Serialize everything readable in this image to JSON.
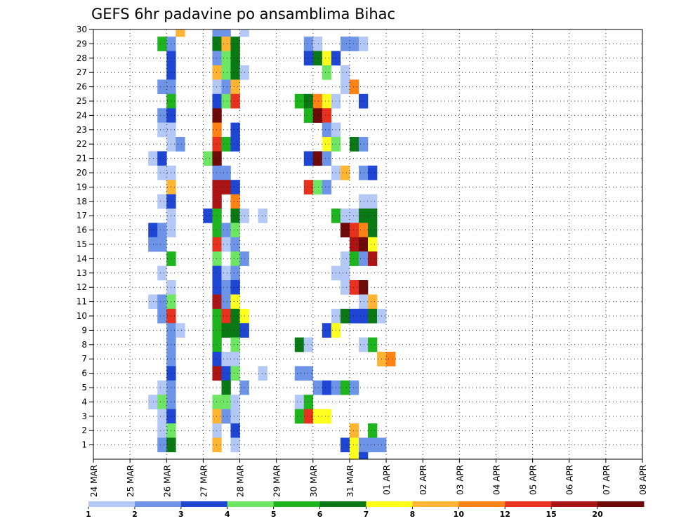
{
  "chart_data": {
    "type": "heatmap",
    "title": "GEFS 6hr padavine po ansamblima Bihac",
    "y_ticks": [
      "1",
      "2",
      "3",
      "4",
      "5",
      "6",
      "7",
      "8",
      "9",
      "10",
      "11",
      "12",
      "13",
      "14",
      "15",
      "16",
      "17",
      "18",
      "19",
      "20",
      "21",
      "22",
      "23",
      "24",
      "25",
      "26",
      "27",
      "28",
      "29",
      "30"
    ],
    "x_ticks": [
      "24 MAR",
      "25 MAR",
      "26 MAR",
      "27 MAR",
      "28 MAR",
      "29 MAR",
      "30 MAR",
      "31 MAR",
      "01 APR",
      "02 APR",
      "03 APR",
      "04 APR",
      "05 APR",
      "06 APR",
      "07 APR",
      "08 APR"
    ],
    "x_range": [
      "24 MAR 00z",
      "08 APR 00z"
    ],
    "y_range": [
      0,
      30
    ],
    "time_step_hours": 6,
    "grid": "dotted",
    "colorbar": {
      "labels": [
        "1",
        "2",
        "3",
        "4",
        "5",
        "6",
        "7",
        "8",
        "10",
        "12",
        "15",
        "20"
      ],
      "colors": [
        "#b4c8f5",
        "#6e94e8",
        "#1e46d2",
        "#6ee664",
        "#1eb41e",
        "#0a7814",
        "#ffff1e",
        "#ffb432",
        "#ff8214",
        "#e6321e",
        "#aa1414",
        "#6e0a0a"
      ]
    },
    "levels": [
      0,
      1,
      2,
      3,
      4,
      5,
      6,
      7,
      8,
      10,
      12,
      15,
      20
    ],
    "cells_format": "[member, time_step_from_24MAR_00z, color_class_index_0_to_11]",
    "cells": [
      [
        30,
        9,
        7
      ],
      [
        29,
        7,
        4
      ],
      [
        29,
        8,
        1
      ],
      [
        28,
        8,
        2
      ],
      [
        27,
        8,
        2
      ],
      [
        26,
        7,
        1
      ],
      [
        26,
        8,
        1
      ],
      [
        25,
        8,
        4
      ],
      [
        24,
        7,
        1
      ],
      [
        24,
        8,
        2
      ],
      [
        23,
        7,
        0
      ],
      [
        23,
        8,
        0
      ],
      [
        22,
        8,
        0
      ],
      [
        22,
        9,
        1
      ],
      [
        21,
        6,
        0
      ],
      [
        21,
        7,
        2
      ],
      [
        20,
        7,
        0
      ],
      [
        20,
        8,
        0
      ],
      [
        19,
        8,
        7
      ],
      [
        18,
        7,
        0
      ],
      [
        18,
        8,
        2
      ],
      [
        17,
        8,
        0
      ],
      [
        16,
        6,
        2
      ],
      [
        16,
        7,
        1
      ],
      [
        16,
        8,
        0
      ],
      [
        15,
        6,
        1
      ],
      [
        15,
        7,
        1
      ],
      [
        14,
        8,
        4
      ],
      [
        13,
        7,
        0
      ],
      [
        12,
        8,
        0
      ],
      [
        11,
        6,
        0
      ],
      [
        11,
        7,
        1
      ],
      [
        11,
        8,
        3
      ],
      [
        10,
        7,
        1
      ],
      [
        10,
        8,
        9
      ],
      [
        9,
        8,
        1
      ],
      [
        9,
        9,
        0
      ],
      [
        8,
        8,
        1
      ],
      [
        7,
        8,
        1
      ],
      [
        6,
        8,
        2
      ],
      [
        5,
        7,
        0
      ],
      [
        5,
        8,
        1
      ],
      [
        4,
        6,
        0
      ],
      [
        4,
        7,
        3
      ],
      [
        4,
        8,
        1
      ],
      [
        3,
        7,
        0
      ],
      [
        3,
        8,
        2
      ],
      [
        2,
        7,
        0
      ],
      [
        2,
        8,
        3
      ],
      [
        1,
        7,
        1
      ],
      [
        1,
        8,
        5
      ],
      [
        30,
        13,
        1
      ],
      [
        30,
        14,
        1
      ],
      [
        30,
        16,
        0
      ],
      [
        29,
        13,
        5
      ],
      [
        29,
        14,
        7
      ],
      [
        29,
        15,
        5
      ],
      [
        28,
        13,
        1
      ],
      [
        28,
        14,
        3
      ],
      [
        28,
        15,
        5
      ],
      [
        27,
        13,
        7
      ],
      [
        27,
        14,
        3
      ],
      [
        27,
        15,
        5
      ],
      [
        27,
        16,
        0
      ],
      [
        26,
        13,
        0
      ],
      [
        26,
        14,
        1
      ],
      [
        26,
        15,
        7
      ],
      [
        25,
        13,
        2
      ],
      [
        25,
        14,
        3
      ],
      [
        25,
        15,
        9
      ],
      [
        24,
        13,
        11
      ],
      [
        23,
        13,
        8
      ],
      [
        23,
        15,
        2
      ],
      [
        22,
        13,
        9
      ],
      [
        22,
        14,
        4
      ],
      [
        22,
        15,
        2
      ],
      [
        21,
        12,
        3
      ],
      [
        21,
        13,
        11
      ],
      [
        20,
        13,
        1
      ],
      [
        20,
        14,
        1
      ],
      [
        19,
        13,
        10
      ],
      [
        19,
        14,
        10
      ],
      [
        19,
        15,
        2
      ],
      [
        18,
        13,
        10
      ],
      [
        18,
        15,
        8
      ],
      [
        17,
        12,
        2
      ],
      [
        17,
        13,
        4
      ],
      [
        17,
        15,
        5
      ],
      [
        17,
        16,
        0
      ],
      [
        17,
        18,
        0
      ],
      [
        16,
        13,
        4
      ],
      [
        16,
        14,
        1
      ],
      [
        16,
        15,
        3
      ],
      [
        15,
        13,
        9
      ],
      [
        15,
        14,
        0
      ],
      [
        15,
        15,
        1
      ],
      [
        14,
        13,
        3
      ],
      [
        14,
        15,
        3
      ],
      [
        14,
        16,
        1
      ],
      [
        13,
        13,
        2
      ],
      [
        13,
        14,
        0
      ],
      [
        13,
        15,
        1
      ],
      [
        12,
        13,
        2
      ],
      [
        12,
        14,
        1
      ],
      [
        12,
        15,
        2
      ],
      [
        11,
        13,
        10
      ],
      [
        11,
        14,
        1
      ],
      [
        11,
        15,
        6
      ],
      [
        10,
        13,
        4
      ],
      [
        10,
        14,
        9
      ],
      [
        10,
        15,
        5
      ],
      [
        10,
        16,
        6
      ],
      [
        9,
        13,
        4
      ],
      [
        9,
        14,
        5
      ],
      [
        9,
        15,
        5
      ],
      [
        9,
        16,
        2
      ],
      [
        8,
        13,
        4
      ],
      [
        8,
        15,
        3
      ],
      [
        7,
        13,
        2
      ],
      [
        7,
        14,
        0
      ],
      [
        7,
        15,
        0
      ],
      [
        6,
        13,
        10
      ],
      [
        6,
        14,
        2
      ],
      [
        6,
        15,
        3
      ],
      [
        6,
        18,
        0
      ],
      [
        5,
        14,
        5
      ],
      [
        5,
        16,
        1
      ],
      [
        4,
        13,
        3
      ],
      [
        4,
        14,
        3
      ],
      [
        4,
        15,
        0
      ],
      [
        3,
        13,
        7
      ],
      [
        3,
        14,
        1
      ],
      [
        3,
        15,
        0
      ],
      [
        2,
        13,
        0
      ],
      [
        2,
        15,
        2
      ],
      [
        1,
        13,
        7
      ],
      [
        1,
        15,
        0
      ],
      [
        29,
        23,
        1
      ],
      [
        29,
        24,
        0
      ],
      [
        29,
        27,
        1
      ],
      [
        29,
        28,
        1
      ],
      [
        29,
        29,
        0
      ],
      [
        28,
        23,
        2
      ],
      [
        28,
        24,
        5
      ],
      [
        28,
        25,
        6
      ],
      [
        28,
        26,
        2
      ],
      [
        27,
        25,
        3
      ],
      [
        27,
        27,
        0
      ],
      [
        26,
        27,
        0
      ],
      [
        26,
        28,
        8
      ],
      [
        25,
        22,
        4
      ],
      [
        25,
        23,
        5
      ],
      [
        25,
        24,
        8
      ],
      [
        25,
        25,
        6
      ],
      [
        25,
        26,
        0
      ],
      [
        25,
        29,
        2
      ],
      [
        24,
        23,
        4
      ],
      [
        24,
        24,
        11
      ],
      [
        24,
        25,
        9
      ],
      [
        23,
        25,
        1
      ],
      [
        23,
        26,
        0
      ],
      [
        22,
        25,
        6
      ],
      [
        22,
        26,
        3
      ],
      [
        22,
        28,
        5
      ],
      [
        22,
        29,
        1
      ],
      [
        21,
        23,
        2
      ],
      [
        21,
        24,
        11
      ],
      [
        21,
        25,
        1
      ],
      [
        20,
        26,
        0
      ],
      [
        20,
        27,
        7
      ],
      [
        20,
        29,
        1
      ],
      [
        20,
        30,
        2
      ],
      [
        19,
        23,
        9
      ],
      [
        19,
        24,
        3
      ],
      [
        19,
        25,
        1
      ],
      [
        18,
        29,
        0
      ],
      [
        18,
        30,
        0
      ],
      [
        17,
        26,
        4
      ],
      [
        17,
        27,
        0
      ],
      [
        17,
        28,
        0
      ],
      [
        17,
        29,
        5
      ],
      [
        17,
        30,
        5
      ],
      [
        16,
        27,
        11
      ],
      [
        16,
        28,
        9
      ],
      [
        16,
        29,
        8
      ],
      [
        16,
        30,
        5
      ],
      [
        15,
        28,
        10
      ],
      [
        15,
        29,
        11
      ],
      [
        15,
        30,
        6
      ],
      [
        14,
        27,
        0
      ],
      [
        14,
        28,
        4
      ],
      [
        14,
        29,
        1
      ],
      [
        14,
        30,
        10
      ],
      [
        13,
        26,
        0
      ],
      [
        13,
        27,
        0
      ],
      [
        12,
        27,
        0
      ],
      [
        12,
        28,
        9
      ],
      [
        12,
        29,
        11
      ],
      [
        11,
        29,
        0
      ],
      [
        11,
        30,
        7
      ],
      [
        10,
        26,
        0
      ],
      [
        10,
        27,
        5
      ],
      [
        10,
        28,
        2
      ],
      [
        10,
        29,
        2
      ],
      [
        10,
        30,
        5
      ],
      [
        10,
        31,
        0
      ],
      [
        9,
        25,
        2
      ],
      [
        9,
        26,
        6
      ],
      [
        8,
        22,
        5
      ],
      [
        8,
        23,
        0
      ],
      [
        8,
        29,
        0
      ],
      [
        8,
        30,
        4
      ],
      [
        7,
        31,
        7
      ],
      [
        7,
        32,
        8
      ],
      [
        6,
        22,
        1
      ],
      [
        6,
        23,
        1
      ],
      [
        5,
        24,
        1
      ],
      [
        5,
        25,
        2
      ],
      [
        5,
        26,
        1
      ],
      [
        5,
        27,
        4
      ],
      [
        5,
        28,
        1
      ],
      [
        4,
        22,
        0
      ],
      [
        4,
        23,
        4
      ],
      [
        3,
        22,
        4
      ],
      [
        3,
        23,
        9
      ],
      [
        3,
        24,
        6
      ],
      [
        3,
        25,
        6
      ],
      [
        2,
        28,
        7
      ],
      [
        2,
        30,
        4
      ],
      [
        1,
        27,
        2
      ],
      [
        1,
        28,
        6
      ],
      [
        1,
        29,
        1
      ],
      [
        1,
        30,
        1
      ],
      [
        1,
        31,
        1
      ],
      [
        0,
        28,
        6
      ],
      [
        0,
        29,
        2
      ]
    ]
  }
}
